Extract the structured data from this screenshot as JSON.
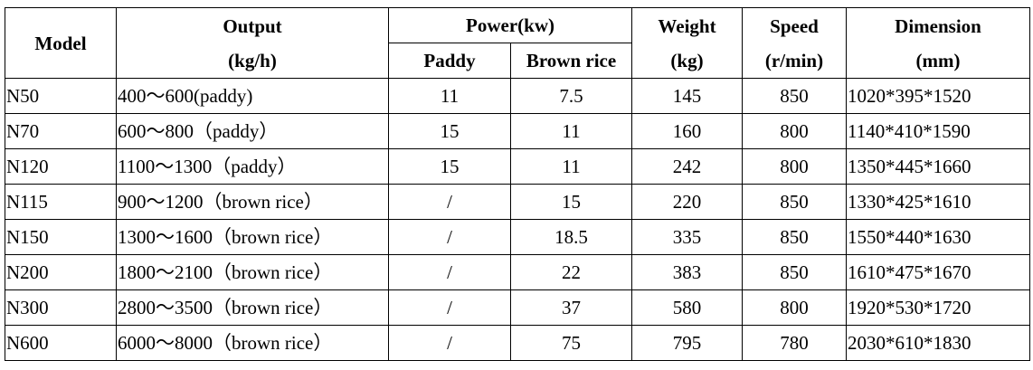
{
  "headers": {
    "model": "Model",
    "output_line1": "Output",
    "output_line2": "(kg/h)",
    "power": "Power(kw)",
    "paddy": "Paddy",
    "brown_rice": "Brown rice",
    "weight_line1": "Weight",
    "weight_line2": "(kg)",
    "speed_line1": "Speed",
    "speed_line2": "(r/min)",
    "dimension_line1": "Dimension",
    "dimension_line2": "(mm)"
  },
  "rows": [
    {
      "model": "N50",
      "output": "400～600(paddy)",
      "paddy": "11",
      "brown": "7.5",
      "weight": "145",
      "speed": "850",
      "dimension": "1020*395*1520"
    },
    {
      "model": "N70",
      "output": "600～800（paddy）",
      "paddy": "15",
      "brown": "11",
      "weight": "160",
      "speed": "800",
      "dimension": "1140*410*1590"
    },
    {
      "model": "N120",
      "output": "1100～1300（paddy）",
      "paddy": "15",
      "brown": "11",
      "weight": "242",
      "speed": "800",
      "dimension": "1350*445*1660"
    },
    {
      "model": "N115",
      "output": "900～1200（brown rice）",
      "paddy": "/",
      "brown": "15",
      "weight": "220",
      "speed": "850",
      "dimension": "1330*425*1610"
    },
    {
      "model": "N150",
      "output": "1300～1600（brown rice）",
      "paddy": "/",
      "brown": "18.5",
      "weight": "335",
      "speed": "850",
      "dimension": "1550*440*1630"
    },
    {
      "model": "N200",
      "output": "1800～2100（brown rice）",
      "paddy": "/",
      "brown": "22",
      "weight": "383",
      "speed": "850",
      "dimension": "1610*475*1670"
    },
    {
      "model": "N300",
      "output": "2800～3500（brown rice）",
      "paddy": "/",
      "brown": "37",
      "weight": "580",
      "speed": "800",
      "dimension": "1920*530*1720"
    },
    {
      "model": "N600",
      "output": "6000～8000（brown rice）",
      "paddy": "/",
      "brown": "75",
      "weight": "795",
      "speed": "780",
      "dimension": "2030*610*1830"
    }
  ]
}
